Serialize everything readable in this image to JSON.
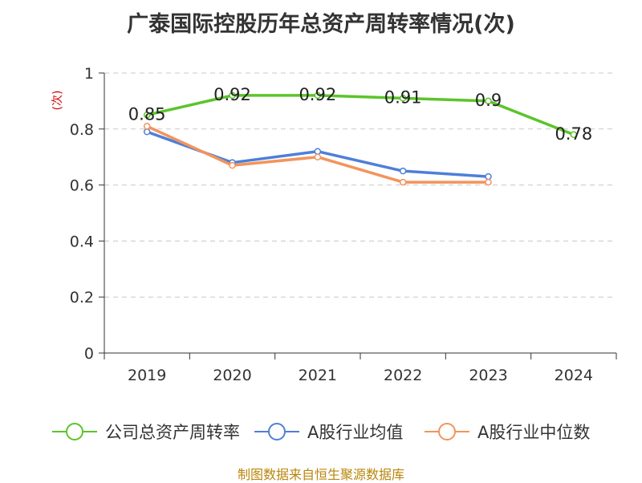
{
  "colors": {
    "company": "#5cc42a",
    "industry_avg": "#4e7fd9",
    "industry_median": "#f2945c",
    "unit_label": "#d40000",
    "source": "#b8860b"
  },
  "source_text": "制图数据来自恒生聚源数据库",
  "chart_data": {
    "type": "line",
    "title": "广泰国际控股历年总资产周转率情况(次)",
    "xlabel": "",
    "ylabel": "(次)",
    "categories": [
      "2019",
      "2020",
      "2021",
      "2022",
      "2023",
      "2024"
    ],
    "ylim": [
      0,
      1
    ],
    "yticks": [
      "0",
      "0.2",
      "0.4",
      "0.6",
      "0.8",
      "1"
    ],
    "ytick_values": [
      0,
      0.2,
      0.4,
      0.6,
      0.8,
      1
    ],
    "grid": true,
    "legend_position": "bottom",
    "series": [
      {
        "name": "公司总资产周转率",
        "color": "#5cc42a",
        "show_labels": true,
        "values": [
          0.85,
          0.92,
          0.92,
          0.91,
          0.9,
          0.78
        ],
        "labels": [
          "0.85",
          "0.92",
          "0.92",
          "0.91",
          "0.9",
          "0.78"
        ]
      },
      {
        "name": "A股行业均值",
        "color": "#4e7fd9",
        "show_labels": false,
        "values": [
          0.79,
          0.68,
          0.72,
          0.65,
          0.63,
          null
        ]
      },
      {
        "name": "A股行业中位数",
        "color": "#f2945c",
        "show_labels": false,
        "values": [
          0.81,
          0.67,
          0.7,
          0.61,
          0.61,
          null
        ]
      }
    ]
  }
}
